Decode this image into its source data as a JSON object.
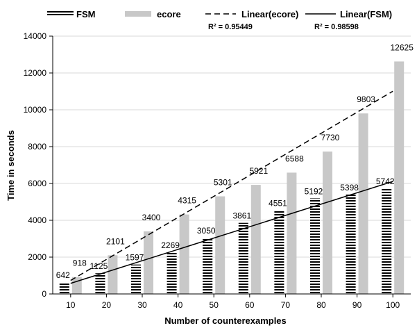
{
  "chart_data": {
    "type": "bar",
    "categories": [
      "10",
      "20",
      "30",
      "40",
      "50",
      "60",
      "70",
      "80",
      "90",
      "100"
    ],
    "series": [
      {
        "name": "FSM",
        "values": [
          642,
          1125,
          1597,
          2269,
          3050,
          3861,
          4551,
          5192,
          5398,
          5742
        ]
      },
      {
        "name": "ecore",
        "values": [
          918,
          2101,
          3400,
          4315,
          5301,
          5921,
          6588,
          7730,
          9803,
          12625
        ]
      }
    ],
    "trendlines": [
      {
        "name": "Linear(ecore)",
        "series": "ecore",
        "type": "linear",
        "r2_label": "R² = 0.95449"
      },
      {
        "name": "Linear(FSM)",
        "series": "FSM",
        "type": "linear",
        "r2_label": "R² = 0.98598"
      }
    ],
    "xlabel": "Number of counterexamples",
    "ylabel": "Time in seconds",
    "ylim": [
      0,
      14000
    ],
    "yticks": [
      0,
      2000,
      4000,
      6000,
      8000,
      10000,
      12000,
      14000
    ],
    "grid": true,
    "legend_position": "top",
    "colors": {
      "fsm_stripe": "#000000",
      "ecore": "#c8c8c8",
      "grid": "#d9d9d9",
      "trend": "#000000"
    }
  }
}
